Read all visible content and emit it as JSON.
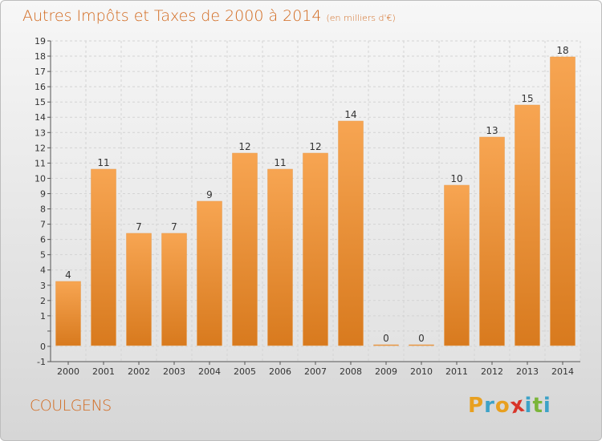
{
  "header": {
    "title": "Autres Impôts et Taxes de 2000 à 2014",
    "unit": "(en milliers d'€)"
  },
  "footer": {
    "place": "COULGENS",
    "logo_letters": [
      "P",
      "r",
      "o",
      "x",
      "i",
      "t",
      "i"
    ]
  },
  "colors": {
    "title": "#d2691e",
    "bar_light": "#f7a552",
    "bar_dark": "#d87a1e",
    "logo": [
      "#e8a020",
      "#3da2c7",
      "#e8a020",
      "#d8352a",
      "#3da2c7",
      "#7bb53a",
      "#3da2c7"
    ]
  },
  "chart_data": {
    "type": "bar",
    "title": "Autres Impôts et Taxes de 2000 à 2014",
    "subtitle": "(en milliers d'€)",
    "categories": [
      "2000",
      "2001",
      "2002",
      "2003",
      "2004",
      "2005",
      "2006",
      "2007",
      "2008",
      "2009",
      "2010",
      "2011",
      "2012",
      "2013",
      "2014"
    ],
    "values": [
      4,
      11,
      7,
      7,
      9,
      12,
      11,
      12,
      14,
      0,
      0,
      10,
      13,
      15,
      18
    ],
    "data_labels": [
      "4",
      "11",
      "7",
      "7",
      "9",
      "12",
      "11",
      "12",
      "14",
      "0",
      "0",
      "10",
      "13",
      "15",
      "18"
    ],
    "ylim": [
      -1,
      19
    ],
    "yticks": [
      "-1",
      "0",
      "",
      "1",
      "2",
      "3",
      "4",
      "5",
      "6",
      "7",
      "8",
      "9",
      "10",
      "11",
      "12",
      "13",
      "14",
      "15",
      "16",
      "17",
      "18",
      "19"
    ],
    "grid": true
  }
}
